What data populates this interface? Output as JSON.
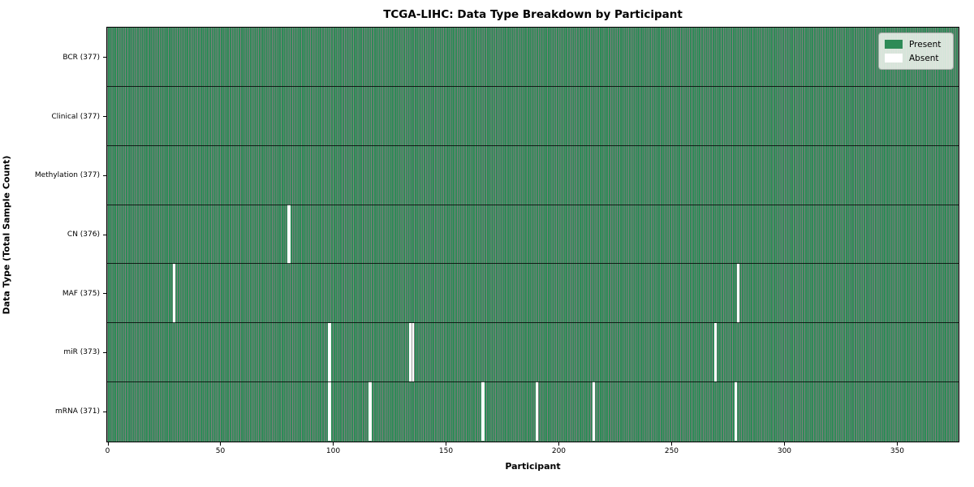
{
  "title": "TCGA-LIHC: Data Type Breakdown by Participant",
  "chart_data": {
    "type": "heatmap",
    "title": "TCGA-LIHC: Data Type Breakdown by Participant",
    "xlabel": "Participant",
    "ylabel": "Data Type (Total Sample Count)",
    "x_range": [
      0,
      377
    ],
    "x_ticks": [
      0,
      50,
      100,
      150,
      200,
      250,
      300,
      350
    ],
    "total_participants": 377,
    "grid": false,
    "legend_position": "top-right",
    "legend": [
      {
        "label": "Present",
        "color": "#2e8b57"
      },
      {
        "label": "Absent",
        "color": "#ffffff"
      }
    ],
    "colors": {
      "present": "#2e8b57",
      "absent": "#ffffff",
      "cell_edge": "rgba(0,0,0,0.5)",
      "row_edge": "rgba(0,0,0,0.78)",
      "spine": "#000000"
    },
    "rows": [
      {
        "label": "BCR (377)",
        "data_type": "BCR",
        "present_count": 377,
        "absent_participants": []
      },
      {
        "label": "Clinical (377)",
        "data_type": "Clinical",
        "present_count": 377,
        "absent_participants": []
      },
      {
        "label": "Methylation (377)",
        "data_type": "Methylation",
        "present_count": 377,
        "absent_participants": []
      },
      {
        "label": "CN (376)",
        "data_type": "CN",
        "present_count": 376,
        "absent_participants": [
          80
        ]
      },
      {
        "label": "MAF (375)",
        "data_type": "MAF",
        "present_count": 375,
        "absent_participants": [
          29,
          279
        ]
      },
      {
        "label": "miR (373)",
        "data_type": "miR",
        "present_count": 373,
        "absent_participants": [
          98,
          134,
          135,
          269
        ]
      },
      {
        "label": "mRNA (371)",
        "data_type": "mRNA",
        "present_count": 371,
        "absent_participants": [
          98,
          116,
          166,
          190,
          215,
          278
        ]
      }
    ]
  }
}
